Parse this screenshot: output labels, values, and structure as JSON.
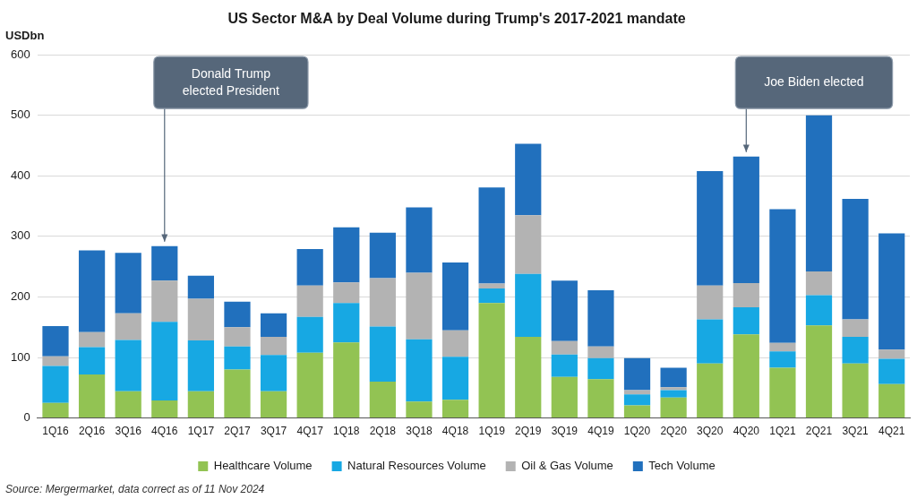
{
  "chart_data": {
    "type": "bar",
    "stacked": true,
    "title": "US Sector M&A by Deal Volume during Trump's 2017-2021 mandate",
    "ylabel": "USDbn",
    "source": "Source: Mergermarket, data correct as of 11 Nov 2024",
    "categories": [
      "1Q16",
      "2Q16",
      "3Q16",
      "4Q16",
      "1Q17",
      "2Q17",
      "3Q17",
      "4Q17",
      "1Q18",
      "2Q18",
      "3Q18",
      "4Q18",
      "1Q19",
      "2Q19",
      "3Q19",
      "4Q19",
      "1Q20",
      "2Q20",
      "3Q20",
      "4Q20",
      "1Q21",
      "2Q21",
      "3Q21",
      "4Q21"
    ],
    "series": [
      {
        "name": "Healthcare Volume",
        "color": "#92c353",
        "values": [
          25,
          72,
          44,
          29,
          44,
          80,
          44,
          108,
          125,
          60,
          27,
          30,
          190,
          134,
          68,
          64,
          21,
          34,
          90,
          138,
          83,
          153,
          90,
          56
        ]
      },
      {
        "name": "Natural Resources Volume",
        "color": "#17a8e3",
        "values": [
          61,
          45,
          85,
          130,
          84,
          38,
          60,
          59,
          65,
          91,
          103,
          71,
          24,
          104,
          37,
          35,
          18,
          12,
          73,
          45,
          27,
          50,
          44,
          42
        ]
      },
      {
        "name": "Oil & Gas Volume",
        "color": "#b3b3b3",
        "values": [
          16,
          25,
          44,
          68,
          69,
          32,
          30,
          52,
          34,
          80,
          110,
          44,
          8,
          97,
          22,
          19,
          7,
          5,
          56,
          40,
          14,
          39,
          29,
          15
        ]
      },
      {
        "name": "Tech Volume",
        "color": "#2170bd",
        "values": [
          50,
          135,
          100,
          57,
          38,
          42,
          39,
          60,
          91,
          75,
          108,
          112,
          159,
          118,
          100,
          93,
          53,
          32,
          189,
          209,
          221,
          258,
          199,
          192
        ]
      }
    ],
    "ylim": [
      0,
      600
    ],
    "yticks": [
      0,
      100,
      200,
      300,
      400,
      500,
      600
    ],
    "grid": true,
    "legend": "bottom",
    "annotations": [
      {
        "lines": [
          "Donald Trump",
          "elected President"
        ],
        "category": "4Q16"
      },
      {
        "lines": [
          "Joe Biden elected"
        ],
        "category": "4Q20"
      }
    ]
  }
}
